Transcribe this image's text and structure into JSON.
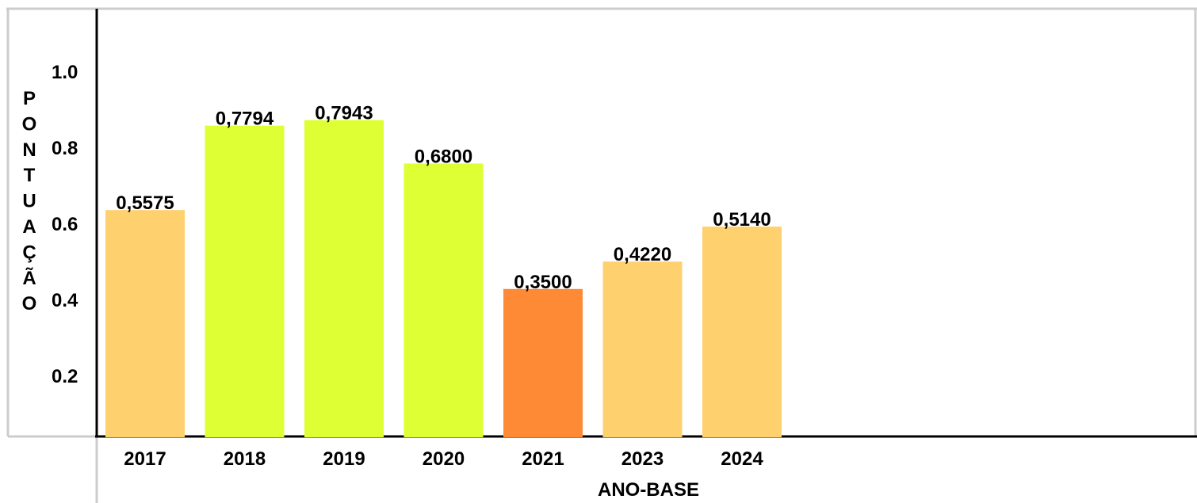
{
  "chart_data": {
    "type": "bar",
    "categories": [
      "2017",
      "2018",
      "2019",
      "2020",
      "2021",
      "2023",
      "2024"
    ],
    "values": [
      0.5575,
      0.7794,
      0.7943,
      0.68,
      0.35,
      0.422,
      0.514
    ],
    "value_labels": [
      "0,5575",
      "0,7794",
      "0,7943",
      "0,6800",
      "0,3500",
      "0,4220",
      "0,5140"
    ],
    "bar_colors": [
      "#ffd06e",
      "#deff33",
      "#deff33",
      "#deff33",
      "#ff8a36",
      "#ffd06e",
      "#ffd06e"
    ],
    "xlabel": "ANO-BASE",
    "ylabel": "PONTUAÇÃO",
    "y_ticks": [
      "0.2",
      "0.4",
      "0.6",
      "0.8",
      "1.0"
    ],
    "ylim": [
      0,
      1.0
    ],
    "grid": false,
    "legend": "none"
  }
}
